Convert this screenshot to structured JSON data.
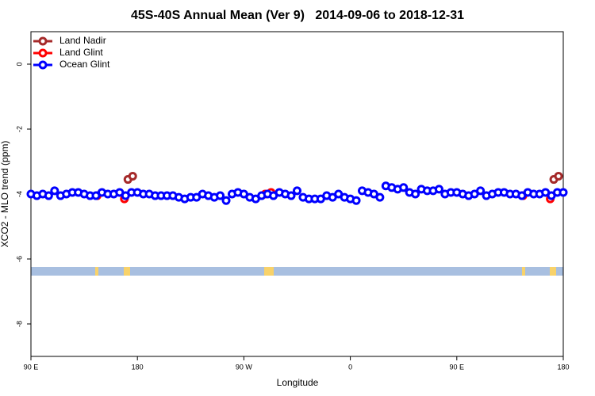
{
  "chart_data": {
    "type": "scatter",
    "title": "45S-40S Annual Mean (Ver 9)   2014-09-06 to 2018-12-31",
    "xlabel": "Longitude",
    "ylabel": "XCO2 - MLO trend (ppm)",
    "xlim": [
      90,
      540
    ],
    "ylim": [
      -9,
      1
    ],
    "xticks": [
      {
        "value": 90,
        "label": "90 E"
      },
      {
        "value": 180,
        "label": "180"
      },
      {
        "value": 270,
        "label": "90 W"
      },
      {
        "value": 360,
        "label": "0"
      },
      {
        "value": 450,
        "label": "90 E"
      },
      {
        "value": 540,
        "label": "180"
      }
    ],
    "yticks": [
      -8,
      -6,
      -4,
      -2,
      0
    ],
    "legend": "top-left",
    "series": [
      {
        "name": "Land Nadir",
        "color": "#a52a2a",
        "x": [
          172,
          176,
          532,
          536
        ],
        "values": [
          -3.55,
          -3.45,
          -3.55,
          -3.45
        ]
      },
      {
        "name": "Land Glint",
        "color": "#ff0000",
        "x": [
          146,
          169,
          288,
          293,
          506,
          529
        ],
        "values": [
          -4.05,
          -4.15,
          -4.0,
          -3.95,
          -4.05,
          -4.15
        ]
      },
      {
        "name": "Ocean Glint",
        "color": "#0000ff",
        "x": [
          90,
          95,
          100,
          105,
          110,
          115,
          120,
          125,
          130,
          135,
          140,
          145,
          150,
          155,
          160,
          165,
          170,
          175,
          180,
          185,
          190,
          195,
          200,
          205,
          210,
          215,
          220,
          225,
          230,
          235,
          240,
          245,
          250,
          255,
          260,
          265,
          270,
          275,
          280,
          285,
          290,
          295,
          300,
          305,
          310,
          315,
          320,
          325,
          330,
          335,
          340,
          345,
          350,
          355,
          360,
          365,
          370,
          375,
          380,
          385,
          390,
          395,
          400,
          405,
          410,
          415,
          420,
          425,
          430,
          435,
          440,
          445,
          450,
          455,
          460,
          465,
          470,
          475,
          480,
          485,
          490,
          495,
          500,
          505,
          510,
          515,
          520,
          525,
          530,
          535,
          540
        ],
        "values": [
          -4.0,
          -4.05,
          -4.0,
          -4.05,
          -3.9,
          -4.05,
          -4.0,
          -3.95,
          -3.95,
          -4.0,
          -4.05,
          -4.05,
          -3.95,
          -4.0,
          -4.0,
          -3.95,
          -4.05,
          -3.95,
          -3.95,
          -4.0,
          -4.0,
          -4.05,
          -4.05,
          -4.05,
          -4.05,
          -4.1,
          -4.15,
          -4.1,
          -4.1,
          -4.0,
          -4.05,
          -4.1,
          -4.05,
          -4.2,
          -4.0,
          -3.95,
          -4.0,
          -4.1,
          -4.15,
          -4.05,
          -4.0,
          -4.05,
          -3.95,
          -4.0,
          -4.05,
          -3.9,
          -4.1,
          -4.15,
          -4.15,
          -4.15,
          -4.05,
          -4.1,
          -4.0,
          -4.1,
          -4.15,
          -4.2,
          -3.9,
          -3.95,
          -4.0,
          -4.1,
          -3.75,
          -3.8,
          -3.85,
          -3.8,
          -3.95,
          -4.0,
          -3.85,
          -3.9,
          -3.9,
          -3.85,
          -4.0,
          -3.95,
          -3.95,
          -4.0,
          -4.05,
          -4.0,
          -3.9,
          -4.05,
          -4.0,
          -3.95,
          -3.95,
          -4.0,
          -4.0,
          -4.05,
          -3.95,
          -4.0,
          -4.0,
          -3.95,
          -4.05,
          -3.95,
          -3.95
        ]
      }
    ]
  }
}
